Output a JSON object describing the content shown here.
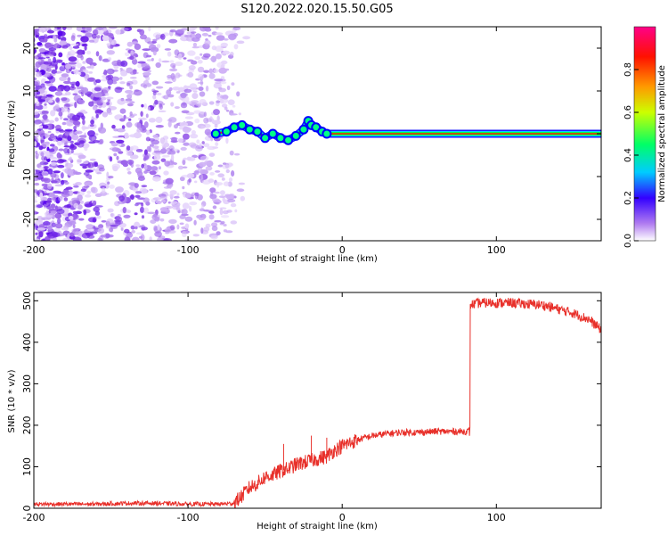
{
  "figure_title": "S120.2022.020.15.50.G05",
  "chart_data": [
    {
      "type": "heatmap",
      "title": "S120.2022.020.15.50.G05",
      "xlabel": "Height of straight line (km)",
      "ylabel": "Frequency (Hz)",
      "xlim": [
        -200,
        168
      ],
      "ylim": [
        -25,
        25
      ],
      "xticks": [
        -200,
        -100,
        0,
        100
      ],
      "yticks": [
        -20,
        -10,
        0,
        10,
        20
      ],
      "colorbar": {
        "label": "Normalized spectral amplitude",
        "range": [
          0,
          1
        ],
        "ticks": [
          0.0,
          0.2,
          0.4,
          0.6,
          0.8
        ],
        "colormap": [
          "#ffffff",
          "#8a2be2",
          "#0000ff",
          "#00ffff",
          "#00ff00",
          "#ffff00",
          "#ff8c00",
          "#ff0000",
          "#ff00aa"
        ]
      },
      "noise_region_x": [
        -200,
        -70
      ],
      "signal_track": {
        "x": [
          -82,
          -75,
          -70,
          -65,
          -60,
          -55,
          -50,
          -45,
          -40,
          -35,
          -30,
          -25,
          -22,
          -20,
          -17,
          -13,
          -10,
          0,
          50,
          100,
          168
        ],
        "frequency": [
          0,
          0.5,
          1.5,
          2,
          1,
          0.5,
          -1,
          0,
          -1,
          -1.5,
          -0.5,
          1,
          3,
          2,
          1.5,
          0.5,
          0,
          0,
          0,
          0,
          0
        ]
      },
      "grid": false
    },
    {
      "type": "line",
      "xlabel": "Height of straight line (km)",
      "ylabel": "SNR (10 * v/v)",
      "xlim": [
        -200,
        168
      ],
      "ylim": [
        0,
        520
      ],
      "xticks": [
        -200,
        -100,
        0,
        100
      ],
      "yticks": [
        0,
        100,
        200,
        300,
        400,
        500
      ],
      "color": "#e8302a",
      "series": [
        {
          "x": [
            -200,
            -180,
            -160,
            -140,
            -120,
            -100,
            -80,
            -70,
            -65,
            -60,
            -55,
            -50,
            -45,
            -40,
            -35,
            -30,
            -25,
            -20,
            -15,
            -10,
            -5,
            0,
            10,
            20,
            30,
            40,
            50,
            60,
            70,
            82,
            83,
            90,
            100,
            110,
            120,
            130,
            140,
            150,
            160,
            168
          ],
          "values": [
            10,
            10,
            10,
            12,
            12,
            10,
            10,
            12,
            30,
            50,
            60,
            75,
            80,
            90,
            95,
            105,
            110,
            115,
            120,
            125,
            140,
            150,
            165,
            175,
            180,
            183,
            183,
            185,
            185,
            185,
            490,
            495,
            495,
            495,
            492,
            490,
            480,
            470,
            455,
            430
          ]
        }
      ],
      "spikes": [
        {
          "x": -38,
          "y": 155
        },
        {
          "x": -20,
          "y": 175
        },
        {
          "x": -10,
          "y": 170
        }
      ],
      "grid": false
    }
  ]
}
